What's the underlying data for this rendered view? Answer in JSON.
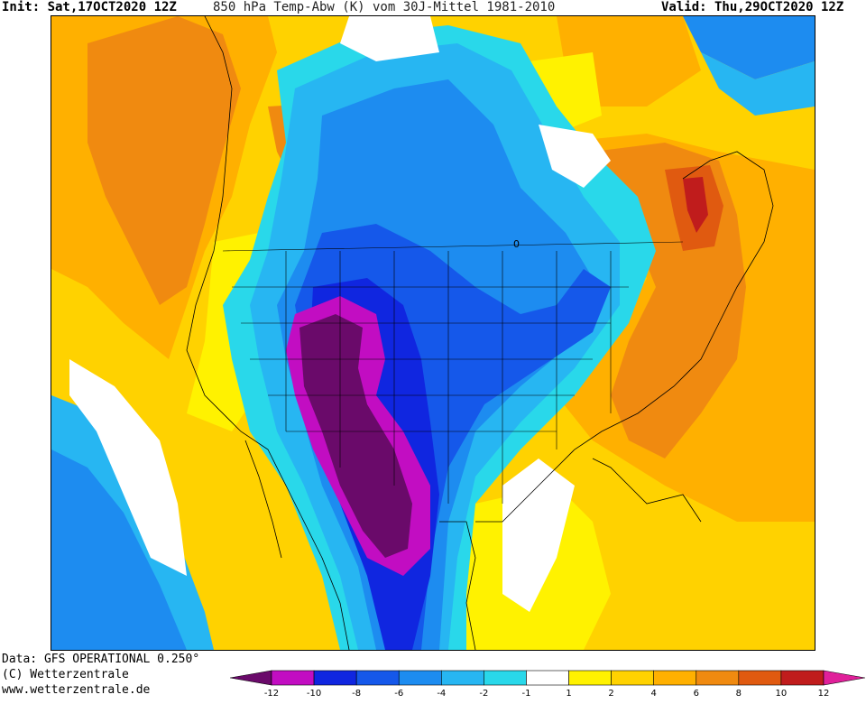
{
  "header": {
    "init": "Init: Sat,17OCT2020 12Z",
    "product": "850 hPa Temp-Abw (K) vom 30J-Mittel 1981-2010",
    "valid": "Valid: Thu,29OCT2020 12Z"
  },
  "footer": {
    "data": "Data: GFS OPERATIONAL 0.250°",
    "copyright": "(C) Wetterzentrale",
    "website": "www.wetterzentrale.de"
  },
  "legend": {
    "ticks": [
      "-12",
      "-10",
      "-8",
      "-6",
      "-4",
      "-2",
      "-1",
      "1",
      "2",
      "4",
      "6",
      "8",
      "10",
      "12"
    ],
    "colors": [
      "#6a0a6a",
      "#c20dc2",
      "#1026e0",
      "#1558ea",
      "#1d8cf0",
      "#27b6f2",
      "#29d8ea",
      "#ffffff",
      "#fff200",
      "#ffd200",
      "#ffb000",
      "#f08a10",
      "#e05a10",
      "#c01c1c",
      "#e0209a"
    ]
  },
  "map": {
    "contour_label": "0",
    "colors": {
      "background": "#ffd200",
      "white": "#ffffff",
      "yellow": "#fff200",
      "gold": "#ffb000",
      "orange": "#f08a10",
      "darkorange": "#e05a10",
      "red": "#c01c1c",
      "cyan": "#29d8ea",
      "lightblue": "#27b6f2",
      "blue": "#1d8cf0",
      "medblue": "#1558ea",
      "darkblue": "#1026e0",
      "magenta": "#c20dc2",
      "purple": "#6a0a6a",
      "border": "#000000"
    }
  }
}
